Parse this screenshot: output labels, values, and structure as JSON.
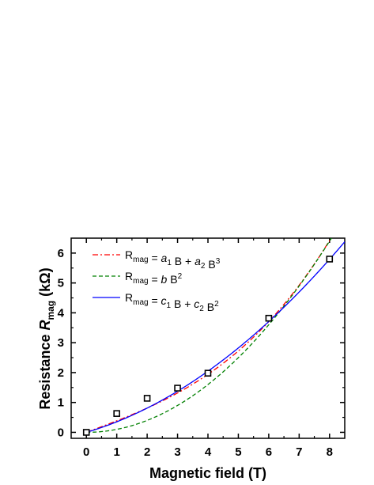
{
  "chart_data": {
    "type": "scatter",
    "xlabel": "Magnetic field (T)",
    "ylabel": {
      "prefix": "Resistance ",
      "symbol": "R",
      "subscript": "mag",
      "suffix": " (kΩ)"
    },
    "xlim": [
      -0.5,
      8.5
    ],
    "ylim": [
      -0.2,
      6.5
    ],
    "xticks": [
      0,
      1,
      2,
      3,
      4,
      5,
      6,
      7,
      8
    ],
    "yticks": [
      0,
      1,
      2,
      3,
      4,
      5,
      6
    ],
    "data_points": {
      "marker": "open-square",
      "x": [
        0,
        1,
        2,
        3,
        4,
        6,
        8
      ],
      "y": [
        0,
        0.63,
        1.14,
        1.48,
        1.98,
        3.82,
        5.8
      ]
    },
    "fits": [
      {
        "style": "dash-dot",
        "color": "#ff0000",
        "formula": "a1 B + a2 B^3",
        "a1": 0.38,
        "a2": 0.0066
      },
      {
        "style": "dashed",
        "color": "#008000",
        "formula": "b B^2",
        "b": 0.1
      },
      {
        "style": "solid",
        "color": "#0000ff",
        "formula": "c1 B + c2 B^2",
        "c1": 0.3,
        "c2": 0.053
      }
    ],
    "legend": {
      "placement": "top-left",
      "entries": [
        {
          "lhs": "R",
          "lhs_sub": "mag",
          "eq": " = ",
          "parts": [
            {
              "t": "a",
              "italic": true
            },
            {
              "t": "1",
              "sub": true
            },
            {
              "t": " B + "
            },
            {
              "t": "a",
              "italic": true
            },
            {
              "t": "2",
              "sub": true
            },
            {
              "t": " B"
            },
            {
              "t": "3",
              "sup": true
            }
          ]
        },
        {
          "lhs": "R",
          "lhs_sub": "mag",
          "eq": " = ",
          "parts": [
            {
              "t": "b",
              "italic": true
            },
            {
              "t": " B"
            },
            {
              "t": "2",
              "sup": true
            }
          ]
        },
        {
          "lhs": "R",
          "lhs_sub": "mag",
          "eq": " = ",
          "parts": [
            {
              "t": "c",
              "italic": true
            },
            {
              "t": "1",
              "sub": true
            },
            {
              "t": " B + "
            },
            {
              "t": "c",
              "italic": true
            },
            {
              "t": "2",
              "sub": true
            },
            {
              "t": " B"
            },
            {
              "t": "2",
              "sup": true
            }
          ]
        }
      ]
    },
    "grid": false
  }
}
